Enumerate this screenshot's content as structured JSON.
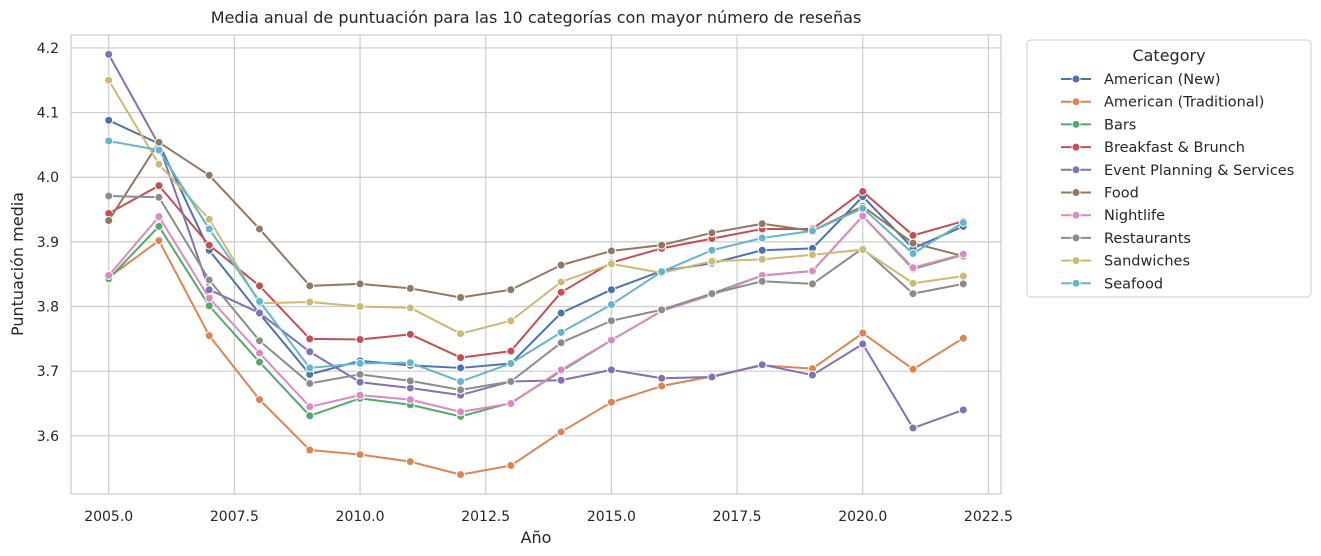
{
  "chart_data": {
    "type": "line",
    "title": "Media anual de puntuación para las 10 categorías con mayor número de reseñas",
    "xlabel": "Año",
    "ylabel": "Puntuación media",
    "xlim": [
      2004.25,
      2022.75
    ],
    "ylim": [
      3.51,
      4.22
    ],
    "xticks": [
      2005.0,
      2007.5,
      2010.0,
      2012.5,
      2015.0,
      2017.5,
      2020.0,
      2022.5
    ],
    "xtick_labels": [
      "2005.0",
      "2007.5",
      "2010.0",
      "2012.5",
      "2015.0",
      "2017.5",
      "2020.0",
      "2022.5"
    ],
    "yticks": [
      3.6,
      3.7,
      3.8,
      3.9,
      4.0,
      4.1,
      4.2
    ],
    "ytick_labels": [
      "3.6",
      "3.7",
      "3.8",
      "3.9",
      "4.0",
      "4.1",
      "4.2"
    ],
    "grid": true,
    "legend": {
      "title": "Category",
      "position": "outside-right"
    },
    "x": [
      2005,
      2006,
      2007,
      2008,
      2009,
      2010,
      2011,
      2012,
      2013,
      2014,
      2015,
      2016,
      2017,
      2018,
      2019,
      2020,
      2021,
      2022
    ],
    "series": [
      {
        "name": "American (New)",
        "color": "#4c72b0",
        "values": [
          4.088,
          4.052,
          3.887,
          3.789,
          3.695,
          3.716,
          3.709,
          3.705,
          3.712,
          3.79,
          3.826,
          3.855,
          3.867,
          3.887,
          3.89,
          3.97,
          3.89,
          3.924
        ]
      },
      {
        "name": "American (Traditional)",
        "color": "#dd8452",
        "values": [
          3.845,
          3.902,
          3.755,
          3.656,
          3.578,
          3.571,
          3.56,
          3.54,
          3.554,
          3.606,
          3.652,
          3.677,
          3.692,
          3.709,
          3.704,
          3.759,
          3.703,
          3.751
        ]
      },
      {
        "name": "Bars",
        "color": "#55a868",
        "values": [
          3.843,
          3.924,
          3.801,
          3.714,
          3.631,
          3.658,
          3.648,
          3.63,
          3.651,
          3.7,
          3.748,
          3.793,
          3.82,
          3.848,
          3.855,
          3.94,
          3.858,
          3.88
        ]
      },
      {
        "name": "Breakfast & Brunch",
        "color": "#c44e52",
        "values": [
          3.944,
          3.987,
          3.895,
          3.832,
          3.75,
          3.749,
          3.757,
          3.721,
          3.731,
          3.822,
          3.868,
          3.89,
          3.905,
          3.92,
          3.92,
          3.978,
          3.91,
          3.932
        ]
      },
      {
        "name": "Event Planning & Services",
        "color": "#8172b3",
        "values": [
          4.19,
          4.05,
          3.826,
          3.79,
          3.73,
          3.683,
          3.674,
          3.663,
          3.684,
          3.686,
          3.702,
          3.689,
          3.691,
          3.71,
          3.694,
          3.742,
          3.612,
          3.64
        ]
      },
      {
        "name": "Food",
        "color": "#937860",
        "values": [
          3.933,
          4.054,
          4.003,
          3.92,
          3.832,
          3.835,
          3.828,
          3.814,
          3.826,
          3.864,
          3.886,
          3.895,
          3.914,
          3.928,
          3.917,
          3.955,
          3.898,
          3.878
        ]
      },
      {
        "name": "Nightlife",
        "color": "#da8bc3",
        "values": [
          3.848,
          3.939,
          3.813,
          3.728,
          3.645,
          3.663,
          3.656,
          3.637,
          3.65,
          3.702,
          3.748,
          3.793,
          3.818,
          3.848,
          3.855,
          3.94,
          3.86,
          3.881
        ]
      },
      {
        "name": "Restaurants",
        "color": "#8c8c8c",
        "values": [
          3.971,
          3.969,
          3.841,
          3.747,
          3.681,
          3.695,
          3.685,
          3.671,
          3.684,
          3.744,
          3.778,
          3.795,
          3.82,
          3.839,
          3.835,
          3.89,
          3.82,
          3.835
        ]
      },
      {
        "name": "Sandwiches",
        "color": "#ccb974",
        "values": [
          4.15,
          4.02,
          3.935,
          3.805,
          3.807,
          3.8,
          3.798,
          3.758,
          3.778,
          3.838,
          3.866,
          3.852,
          3.87,
          3.873,
          3.88,
          3.888,
          3.836,
          3.847
        ]
      },
      {
        "name": "Seafood",
        "color": "#64b5cd",
        "values": [
          4.056,
          4.042,
          3.92,
          3.808,
          3.705,
          3.712,
          3.713,
          3.684,
          3.712,
          3.76,
          3.803,
          3.854,
          3.887,
          3.906,
          3.917,
          3.952,
          3.882,
          3.93
        ]
      }
    ]
  }
}
